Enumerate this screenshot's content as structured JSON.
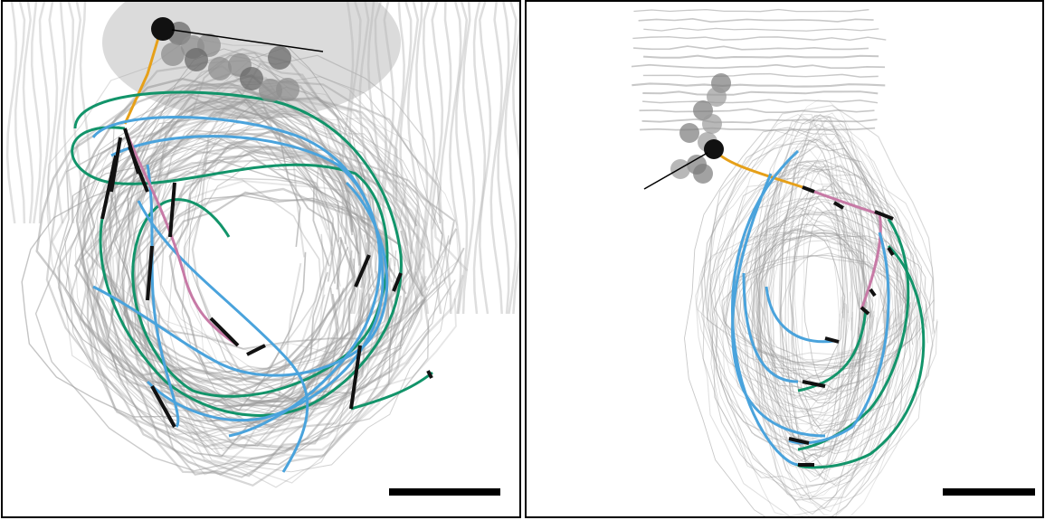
{
  "panels": [
    {
      "id": "left"
    },
    {
      "id": "right"
    }
  ],
  "colors": {
    "background": "#ffffff",
    "frame": "#000000",
    "gray_lines": "#9a9a9a",
    "blue": "#4aa3dc",
    "green": "#12946a",
    "orange": "#e6a019",
    "pink": "#c77aa6",
    "black": "#111111",
    "bead": "#7a7a7a",
    "scale_bar": "#000000"
  }
}
